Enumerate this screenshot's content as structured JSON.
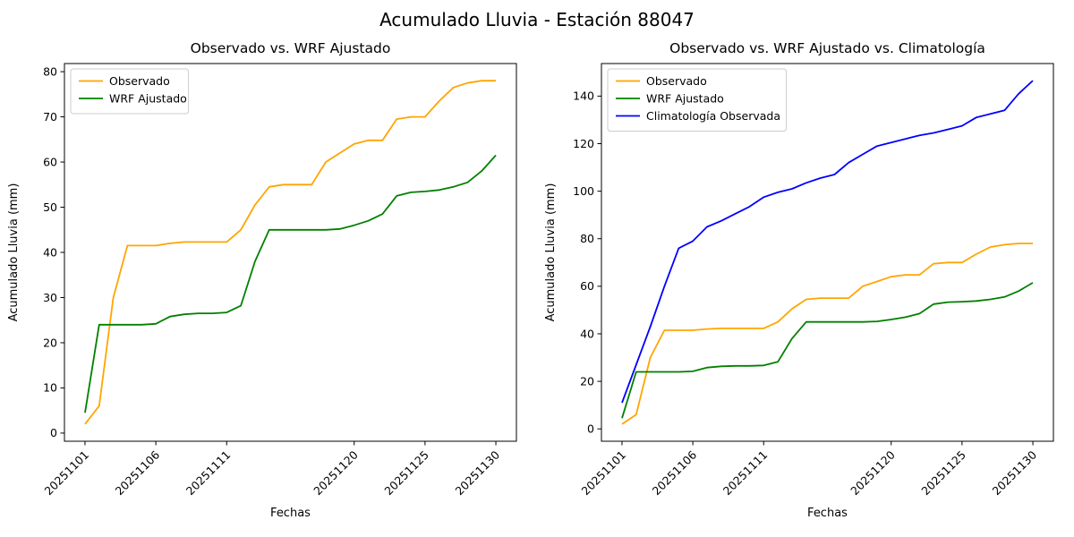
{
  "figure": {
    "title": "Acumulado Lluvia - Estación 88047",
    "background": "#ffffff"
  },
  "chart_data": [
    {
      "type": "line",
      "title": "Observado vs. WRF Ajustado",
      "xlabel": "Fechas",
      "ylabel": "Acumulado Lluvia (mm)",
      "grid": false,
      "legend_position": "upper-left",
      "x": [
        1,
        2,
        3,
        4,
        5,
        6,
        7,
        8,
        9,
        10,
        11,
        12,
        13,
        14,
        15,
        16,
        17,
        18,
        19,
        20,
        21,
        22,
        23,
        24,
        25,
        26,
        27,
        28,
        29,
        30
      ],
      "xlim": [
        -0.45,
        31.45
      ],
      "ylim": [
        -1.8,
        81.8
      ],
      "yticks": [
        0,
        10,
        20,
        30,
        40,
        50,
        60,
        70,
        80
      ],
      "xticks": {
        "positions": [
          1,
          6,
          11,
          20,
          25,
          30
        ],
        "labels": [
          "20251101",
          "20251106",
          "20251111",
          "20251120",
          "20251125",
          "20251130"
        ]
      },
      "series": [
        {
          "name": "Observado",
          "color": "#ffa500",
          "values": [
            2,
            6,
            30,
            41.5,
            41.5,
            41.5,
            42,
            42.3,
            42.3,
            42.3,
            42.3,
            45,
            50.5,
            54.5,
            55,
            55,
            55,
            60,
            62,
            64,
            64.8,
            64.8,
            69.5,
            70,
            70,
            73.5,
            76.5,
            77.5,
            78,
            78
          ]
        },
        {
          "name": "WRF Ajustado",
          "color": "#008000",
          "values": [
            4.5,
            24,
            24,
            24,
            24,
            24.2,
            25.8,
            26.3,
            26.5,
            26.5,
            26.7,
            28.2,
            38,
            45,
            45,
            45,
            45,
            45,
            45.2,
            46,
            47,
            48.5,
            52.5,
            53.3,
            53.5,
            53.8,
            54.5,
            55.5,
            58,
            61.5
          ]
        }
      ]
    },
    {
      "type": "line",
      "title": "Observado vs. WRF Ajustado vs. Climatología",
      "xlabel": "Fechas",
      "ylabel": "Acumulado Lluvia (mm)",
      "grid": false,
      "legend_position": "upper-left",
      "x": [
        1,
        2,
        3,
        4,
        5,
        6,
        7,
        8,
        9,
        10,
        11,
        12,
        13,
        14,
        15,
        16,
        17,
        18,
        19,
        20,
        21,
        22,
        23,
        24,
        25,
        26,
        27,
        28,
        29,
        30
      ],
      "xlim": [
        -0.45,
        31.45
      ],
      "ylim": [
        -5.2,
        153.7
      ],
      "yticks": [
        0,
        20,
        40,
        60,
        80,
        100,
        120,
        140
      ],
      "xticks": {
        "positions": [
          1,
          6,
          11,
          20,
          25,
          30
        ],
        "labels": [
          "20251101",
          "20251106",
          "20251111",
          "20251120",
          "20251125",
          "20251130"
        ]
      },
      "series": [
        {
          "name": "Observado",
          "color": "#ffa500",
          "values": [
            2,
            6,
            30,
            41.5,
            41.5,
            41.5,
            42,
            42.3,
            42.3,
            42.3,
            42.3,
            45,
            50.5,
            54.5,
            55,
            55,
            55,
            60,
            62,
            64,
            64.8,
            64.8,
            69.5,
            70,
            70,
            73.5,
            76.5,
            77.5,
            78,
            78
          ]
        },
        {
          "name": "WRF Ajustado",
          "color": "#008000",
          "values": [
            4.5,
            24,
            24,
            24,
            24,
            24.2,
            25.8,
            26.3,
            26.5,
            26.5,
            26.7,
            28.2,
            38,
            45,
            45,
            45,
            45,
            45,
            45.2,
            46,
            47,
            48.5,
            52.5,
            53.3,
            53.5,
            53.8,
            54.5,
            55.5,
            58,
            61.5
          ]
        },
        {
          "name": "Climatología Observada",
          "color": "#0000ff",
          "values": [
            11,
            27,
            43,
            60,
            76,
            79,
            85,
            87.5,
            90.5,
            93.5,
            97.5,
            99.5,
            101,
            103.5,
            105.5,
            107,
            112,
            115.5,
            119,
            120.5,
            122,
            123.5,
            124.5,
            126,
            127.5,
            131,
            132.5,
            134,
            141,
            146.5
          ]
        }
      ]
    }
  ]
}
